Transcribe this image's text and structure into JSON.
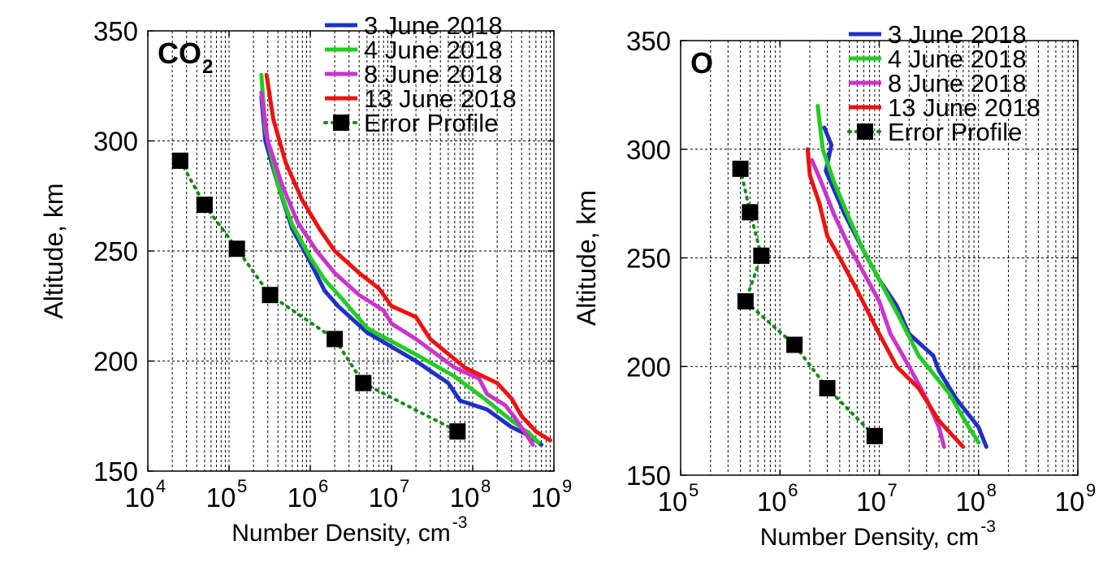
{
  "figure_name": "CO2 and O number density profiles",
  "chart_data": [
    {
      "type": "line",
      "panel_label": "CO",
      "panel_label_sub": "2",
      "xlabel": "Number Density, cm",
      "xlabel_sup": "-3",
      "ylabel": "Altitude, km",
      "xscale": "log",
      "xlim": [
        10000,
        1000000000
      ],
      "ylim": [
        150,
        350
      ],
      "yticks": [
        150,
        200,
        250,
        300,
        350
      ],
      "xticks_exp": [
        4,
        5,
        6,
        7,
        8,
        9
      ],
      "tick_base": "10",
      "grid": true,
      "legend_position": "top-right",
      "series": [
        {
          "name": "3 June 2018",
          "color": "#1f2fc8",
          "style": "solid",
          "points": [
            [
              250000,
              320
            ],
            [
              280000,
              300
            ],
            [
              400000,
              280
            ],
            [
              600000,
              260
            ],
            [
              1000000,
              245
            ],
            [
              1500000,
              232
            ],
            [
              2200000,
              225
            ],
            [
              5000000,
              213
            ],
            [
              20000000,
              200
            ],
            [
              50000000,
              190
            ],
            [
              70000000,
              182
            ],
            [
              150000000,
              178
            ],
            [
              300000000,
              170
            ],
            [
              500000000,
              166
            ],
            [
              700000000,
              162
            ]
          ]
        },
        {
          "name": "4 June 2018",
          "color": "#22cc22",
          "style": "solid",
          "points": [
            [
              250000,
              330
            ],
            [
              280000,
              305
            ],
            [
              400000,
              280
            ],
            [
              600000,
              262
            ],
            [
              1000000,
              247
            ],
            [
              1500000,
              237
            ],
            [
              2500000,
              228
            ],
            [
              5000000,
              215
            ],
            [
              20000000,
              203
            ],
            [
              60000000,
              193
            ],
            [
              150000000,
              182
            ],
            [
              300000000,
              173
            ],
            [
              500000000,
              167
            ],
            [
              650000000,
              163
            ]
          ]
        },
        {
          "name": "8 June 2018",
          "color": "#cc33cc",
          "style": "solid",
          "points": [
            [
              250000,
              322
            ],
            [
              300000,
              300
            ],
            [
              450000,
              280
            ],
            [
              700000,
              263
            ],
            [
              1200000,
              250
            ],
            [
              2000000,
              240
            ],
            [
              4000000,
              230
            ],
            [
              8000000,
              223
            ],
            [
              10000000,
              217
            ],
            [
              20000000,
              210
            ],
            [
              60000000,
              197
            ],
            [
              120000000,
              192
            ],
            [
              150000000,
              185
            ],
            [
              250000000,
              180
            ],
            [
              320000000,
              175
            ],
            [
              450000000,
              167
            ],
            [
              550000000,
              162
            ]
          ]
        },
        {
          "name": "13 June 2018",
          "color": "#ee1111",
          "style": "solid",
          "points": [
            [
              290000,
              330
            ],
            [
              350000,
              310
            ],
            [
              500000,
              290
            ],
            [
              800000,
              273
            ],
            [
              1300000,
              260
            ],
            [
              2000000,
              250
            ],
            [
              4000000,
              240
            ],
            [
              7000000,
              233
            ],
            [
              10000000,
              225
            ],
            [
              20000000,
              220
            ],
            [
              30000000,
              210
            ],
            [
              80000000,
              197
            ],
            [
              200000000,
              190
            ],
            [
              300000000,
              183
            ],
            [
              400000000,
              175
            ],
            [
              600000000,
              168
            ],
            [
              900000000,
              164
            ]
          ]
        },
        {
          "name": "Error Profile",
          "color": "#138a13",
          "style": "dotted-markers",
          "points": [
            [
              25000,
              291
            ],
            [
              50000,
              271
            ],
            [
              125000,
              251
            ],
            [
              320000,
              230
            ],
            [
              2000000,
              210
            ],
            [
              4500000,
              190
            ],
            [
              65000000,
              168
            ]
          ]
        }
      ]
    },
    {
      "type": "line",
      "panel_label": "O",
      "panel_label_sub": "",
      "xlabel": "Number Density, cm",
      "xlabel_sup": "-3",
      "ylabel": "Altitude, km",
      "xscale": "log",
      "xlim": [
        100000,
        1000000000
      ],
      "ylim": [
        150,
        350
      ],
      "yticks": [
        150,
        200,
        250,
        300,
        350
      ],
      "xticks_exp": [
        5,
        6,
        7,
        8,
        9
      ],
      "tick_base": "10",
      "grid": true,
      "legend_position": "top-right",
      "series": [
        {
          "name": "3 June 2018",
          "color": "#1f2fc8",
          "style": "solid",
          "points": [
            [
              2800000,
              310
            ],
            [
              3300000,
              302
            ],
            [
              2900000,
              290
            ],
            [
              4500000,
              270
            ],
            [
              7000000,
              253
            ],
            [
              10000000,
              240
            ],
            [
              15000000,
              228
            ],
            [
              20000000,
              215
            ],
            [
              35000000,
              205
            ],
            [
              40000000,
              198
            ],
            [
              60000000,
              185
            ],
            [
              100000000,
              172
            ],
            [
              120000000,
              163
            ]
          ]
        },
        {
          "name": "4 June 2018",
          "color": "#22cc22",
          "style": "solid",
          "points": [
            [
              2400000,
              320
            ],
            [
              2700000,
              300
            ],
            [
              3500000,
              285
            ],
            [
              5000000,
              268
            ],
            [
              7000000,
              253
            ],
            [
              10000000,
              240
            ],
            [
              15000000,
              225
            ],
            [
              25000000,
              205
            ],
            [
              50000000,
              188
            ],
            [
              80000000,
              172
            ],
            [
              100000000,
              165
            ]
          ]
        },
        {
          "name": "8 June 2018",
          "color": "#cc33cc",
          "style": "solid",
          "points": [
            [
              2100000,
              295
            ],
            [
              2600000,
              285
            ],
            [
              3500000,
              270
            ],
            [
              5000000,
              255
            ],
            [
              7000000,
              243
            ],
            [
              10000000,
              230
            ],
            [
              13000000,
              215
            ],
            [
              20000000,
              200
            ],
            [
              30000000,
              185
            ],
            [
              40000000,
              172
            ],
            [
              45000000,
              163
            ]
          ]
        },
        {
          "name": "13 June 2018",
          "color": "#ee1111",
          "style": "solid",
          "points": [
            [
              1900000,
              300
            ],
            [
              2000000,
              288
            ],
            [
              2500000,
              275
            ],
            [
              3000000,
              260
            ],
            [
              4000000,
              250
            ],
            [
              6000000,
              235
            ],
            [
              10000000,
              215
            ],
            [
              15000000,
              200
            ],
            [
              25000000,
              190
            ],
            [
              40000000,
              175
            ],
            [
              70000000,
              163
            ]
          ]
        },
        {
          "name": "Error Profile",
          "color": "#138a13",
          "style": "dotted-markers",
          "points": [
            [
              400000,
              291
            ],
            [
              500000,
              271
            ],
            [
              650000,
              251
            ],
            [
              450000,
              230
            ],
            [
              1400000,
              210
            ],
            [
              3000000,
              190
            ],
            [
              9000000,
              168
            ]
          ]
        }
      ]
    }
  ]
}
